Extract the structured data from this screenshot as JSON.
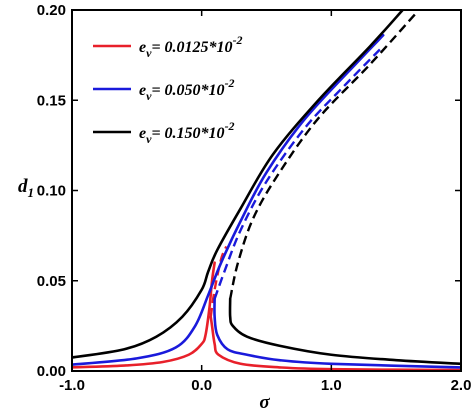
{
  "chart_data": {
    "type": "line",
    "title": "",
    "xlabel": "σ",
    "ylabel": "d",
    "ylabel_subscript": "1",
    "xlim": [
      -1.0,
      2.0
    ],
    "ylim": [
      0.0,
      0.2
    ],
    "x_ticks": [
      -1.0,
      0.0,
      1.0,
      2.0
    ],
    "x_tick_labels": [
      "-1.0",
      "0.0",
      "1.0",
      "2.0"
    ],
    "y_ticks": [
      0.0,
      0.05,
      0.1,
      0.15,
      0.2
    ],
    "y_tick_labels": [
      "0.00",
      "0.05",
      "0.10",
      "0.15",
      "0.20"
    ],
    "grid": false,
    "legend_position": "top-left",
    "series": [
      {
        "name": "e_v = 0.0125*10^-2",
        "legend_main": "e",
        "legend_sub": "v",
        "legend_rest": "= 0.0125*10",
        "legend_exp": "-2",
        "color": "#e8202a",
        "upper": [
          [
            -1.0,
            0.002
          ],
          [
            -0.6,
            0.003
          ],
          [
            -0.3,
            0.005
          ],
          [
            -0.1,
            0.009
          ],
          [
            0.0,
            0.015
          ],
          [
            0.03,
            0.02
          ],
          [
            0.06,
            0.035
          ],
          [
            0.08,
            0.05
          ],
          [
            0.1,
            0.06
          ]
        ],
        "lower": [
          [
            0.07,
            0.03
          ],
          [
            0.08,
            0.025
          ],
          [
            0.1,
            0.015
          ],
          [
            0.13,
            0.009
          ],
          [
            0.3,
            0.004
          ],
          [
            0.6,
            0.002
          ],
          [
            1.0,
            0.001
          ],
          [
            2.0,
            0.0005
          ]
        ],
        "unstable": [
          [
            0.07,
            0.03
          ],
          [
            0.1,
            0.045
          ],
          [
            0.15,
            0.062
          ],
          [
            0.19,
            0.069
          ]
        ]
      },
      {
        "name": "e_v = 0.050*10^-2",
        "legend_main": "e",
        "legend_sub": "v",
        "legend_rest": "= 0.050*10",
        "legend_exp": "-2",
        "color": "#1a1adb",
        "upper": [
          [
            -1.0,
            0.0035
          ],
          [
            -0.5,
            0.007
          ],
          [
            -0.2,
            0.013
          ],
          [
            -0.05,
            0.025
          ],
          [
            0.05,
            0.042
          ],
          [
            0.15,
            0.06
          ],
          [
            0.3,
            0.083
          ],
          [
            0.5,
            0.11
          ],
          [
            0.8,
            0.14
          ],
          [
            1.2,
            0.171
          ],
          [
            1.4,
            0.186
          ]
        ],
        "lower": [
          [
            0.1,
            0.04
          ],
          [
            0.1,
            0.03
          ],
          [
            0.12,
            0.02
          ],
          [
            0.2,
            0.012
          ],
          [
            0.35,
            0.009
          ],
          [
            0.6,
            0.006
          ],
          [
            1.0,
            0.004
          ],
          [
            2.0,
            0.002
          ]
        ],
        "unstable": [
          [
            0.1,
            0.04
          ],
          [
            0.18,
            0.056
          ],
          [
            0.3,
            0.078
          ],
          [
            0.5,
            0.105
          ],
          [
            0.8,
            0.135
          ],
          [
            1.1,
            0.158
          ],
          [
            1.4,
            0.18
          ]
        ]
      },
      {
        "name": "e_v = 0.150*10^-2",
        "legend_main": "e",
        "legend_sub": "v",
        "legend_rest": "= 0.150*10",
        "legend_exp": "-2",
        "color": "#000000",
        "upper": [
          [
            -1.0,
            0.0075
          ],
          [
            -0.6,
            0.012
          ],
          [
            -0.35,
            0.019
          ],
          [
            -0.15,
            0.03
          ],
          [
            0.0,
            0.045
          ],
          [
            0.05,
            0.055
          ],
          [
            0.12,
            0.067
          ],
          [
            0.3,
            0.09
          ],
          [
            0.55,
            0.12
          ],
          [
            0.9,
            0.15
          ],
          [
            1.3,
            0.18
          ],
          [
            1.55,
            0.2
          ]
        ],
        "lower": [
          [
            0.22,
            0.04
          ],
          [
            0.22,
            0.03
          ],
          [
            0.24,
            0.025
          ],
          [
            0.35,
            0.019
          ],
          [
            0.6,
            0.014
          ],
          [
            1.0,
            0.009
          ],
          [
            1.5,
            0.006
          ],
          [
            2.0,
            0.004
          ]
        ],
        "unstable": [
          [
            0.22,
            0.04
          ],
          [
            0.28,
            0.06
          ],
          [
            0.4,
            0.085
          ],
          [
            0.6,
            0.11
          ],
          [
            0.9,
            0.14
          ],
          [
            1.3,
            0.17
          ],
          [
            1.65,
            0.198
          ]
        ]
      }
    ]
  }
}
